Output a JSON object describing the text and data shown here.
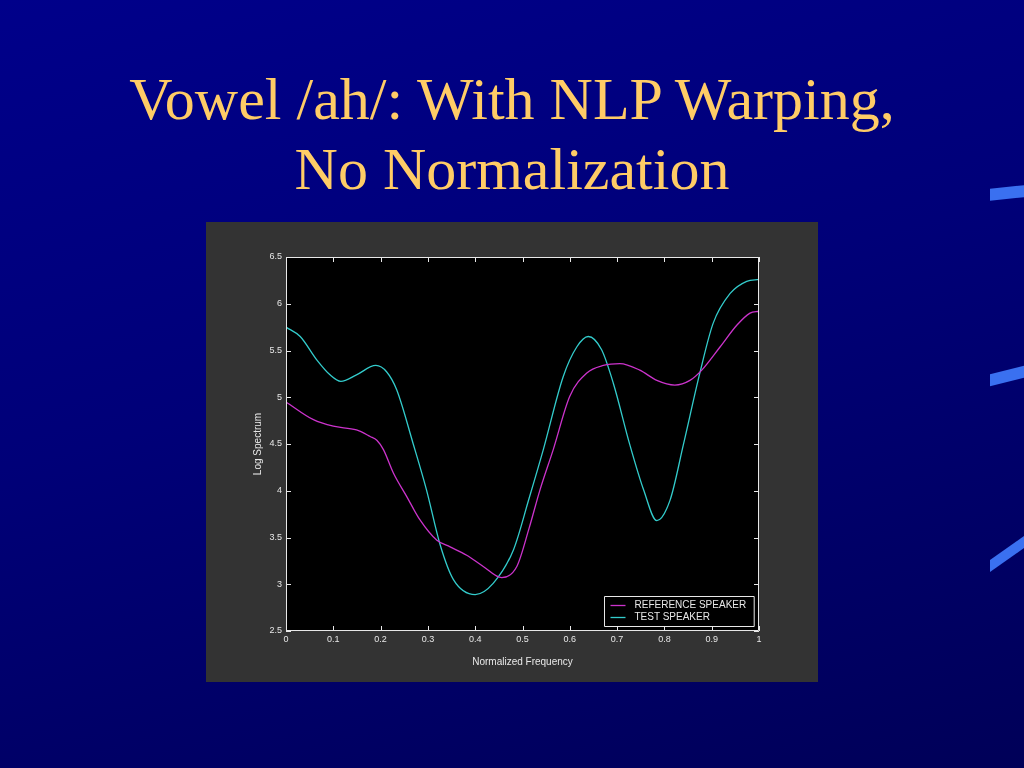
{
  "chart_data": {
    "type": "line",
    "title": "Vowel /ah/: With NLP Warping, No Normalization",
    "xlabel": "Normalized Frequency",
    "ylabel": "Log Spectrum",
    "xlim": [
      0,
      1
    ],
    "xticks": [
      0,
      0.1,
      0.2,
      0.3,
      0.4,
      0.5,
      0.6,
      0.7,
      0.8,
      0.9,
      1
    ],
    "ylim": [
      2.5,
      6.5
    ],
    "yticks": [
      2.5,
      3,
      3.5,
      4,
      4.5,
      5,
      5.5,
      6,
      6.5
    ],
    "grid": false,
    "legend": "bottom right",
    "series": [
      {
        "name": "REFERENCE SPEAKER",
        "color": "#cc33cc",
        "x": [
          0,
          0.058,
          0.1,
          0.149,
          0.178,
          0.192,
          0.206,
          0.227,
          0.255,
          0.283,
          0.319,
          0.347,
          0.382,
          0.417,
          0.456,
          0.488,
          0.514,
          0.537,
          0.565,
          0.6,
          0.636,
          0.671,
          0.706,
          0.748,
          0.784,
          0.822,
          0.854,
          0.879,
          0.918,
          0.953,
          0.981,
          1
        ],
        "values": [
          4.95,
          4.76,
          4.69,
          4.65,
          4.58,
          4.54,
          4.44,
          4.19,
          3.94,
          3.69,
          3.47,
          3.4,
          3.31,
          3.19,
          3.07,
          3.19,
          3.6,
          4.01,
          4.44,
          5.01,
          5.26,
          5.34,
          5.36,
          5.29,
          5.18,
          5.13,
          5.18,
          5.29,
          5.54,
          5.77,
          5.9,
          5.92
        ]
      },
      {
        "name": "TEST SPEAKER",
        "color": "#33cccc",
        "x": [
          0,
          0.03,
          0.065,
          0.093,
          0.116,
          0.149,
          0.19,
          0.213,
          0.234,
          0.269,
          0.297,
          0.326,
          0.354,
          0.4,
          0.438,
          0.481,
          0.514,
          0.544,
          0.586,
          0.615,
          0.639,
          0.667,
          0.692,
          0.727,
          0.756,
          0.784,
          0.812,
          0.84,
          0.875,
          0.903,
          0.939,
          0.974,
          1
        ],
        "values": [
          5.75,
          5.65,
          5.4,
          5.24,
          5.17,
          5.24,
          5.34,
          5.27,
          5.08,
          4.5,
          4.01,
          3.42,
          3.05,
          2.89,
          3.01,
          3.37,
          3.92,
          4.44,
          5.22,
          5.54,
          5.65,
          5.51,
          5.15,
          4.49,
          4.01,
          3.68,
          3.9,
          4.49,
          5.26,
          5.79,
          6.11,
          6.24,
          6.26
        ]
      }
    ]
  }
}
